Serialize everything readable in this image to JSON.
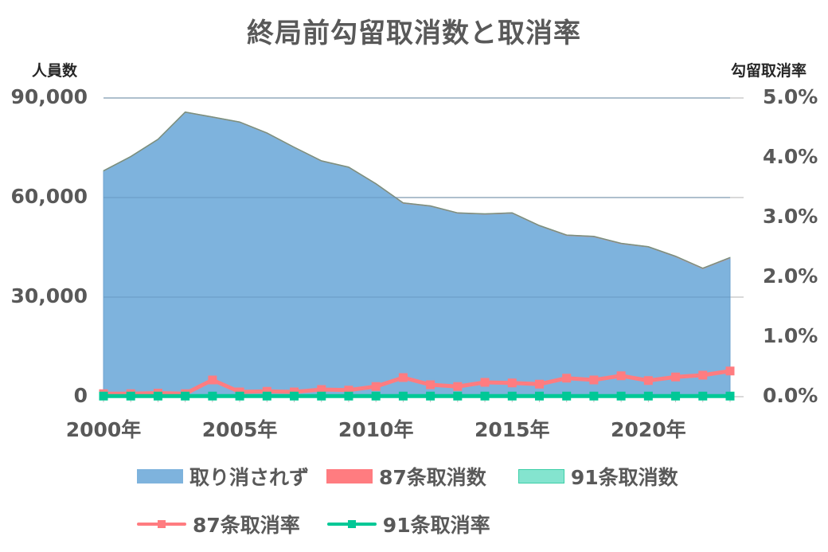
{
  "chart_data": {
    "type": "area+line (dual axis)",
    "title": "終局前勾留取消数と取消率",
    "left_axis_label": "人員数",
    "right_axis_label": "勾留取消率",
    "x": [
      2000,
      2001,
      2002,
      2003,
      2004,
      2005,
      2006,
      2007,
      2008,
      2009,
      2010,
      2011,
      2012,
      2013,
      2014,
      2015,
      2016,
      2017,
      2018,
      2019,
      2020,
      2021,
      2022,
      2023
    ],
    "x_tick_labels": [
      "2000年",
      "2005年",
      "2010年",
      "2015年",
      "2020年"
    ],
    "x_tick_years": [
      2000,
      2005,
      2010,
      2015,
      2020
    ],
    "left_axis": {
      "ylim": [
        0,
        90000
      ],
      "ticks": [
        "0",
        "30,000",
        "60,000",
        "90,000"
      ],
      "tick_values": [
        0,
        30000,
        60000,
        90000
      ]
    },
    "right_axis": {
      "ylim": [
        0.0,
        5.0
      ],
      "ticks": [
        "0.0%",
        "1.0%",
        "2.0%",
        "3.0%",
        "4.0%",
        "5.0%"
      ],
      "tick_values": [
        0,
        1,
        2,
        3,
        4,
        5
      ]
    },
    "series": [
      {
        "name": "取り消されず",
        "type": "stacked-area",
        "axis": "left",
        "color": "#7EB3DD",
        "values": [
          68000,
          72300,
          77500,
          85700,
          84200,
          82700,
          79400,
          75100,
          71000,
          69100,
          64100,
          58300,
          57400,
          55300,
          55000,
          55300,
          51500,
          48600,
          48200,
          46100,
          45100,
          42200,
          38600,
          41800
        ]
      },
      {
        "name": "87条取消数",
        "type": "stacked-area",
        "axis": "left",
        "color": "#FF7C80",
        "values": [
          40,
          40,
          40,
          40,
          60,
          40,
          40,
          40,
          50,
          50,
          60,
          80,
          60,
          60,
          70,
          70,
          60,
          90,
          80,
          90,
          70,
          90,
          90,
          110
        ]
      },
      {
        "name": "91条取消数",
        "type": "stacked-area",
        "axis": "left",
        "color": "#84E4CF",
        "values": [
          10,
          10,
          10,
          10,
          10,
          10,
          10,
          10,
          10,
          10,
          10,
          10,
          10,
          10,
          10,
          10,
          10,
          10,
          10,
          10,
          10,
          10,
          10,
          10
        ]
      },
      {
        "name": "87条取消率",
        "type": "line",
        "axis": "right",
        "color": "#FF7C80",
        "unit": "%",
        "values": [
          0.05,
          0.05,
          0.06,
          0.05,
          0.28,
          0.08,
          0.09,
          0.08,
          0.12,
          0.11,
          0.17,
          0.32,
          0.2,
          0.17,
          0.24,
          0.23,
          0.21,
          0.31,
          0.28,
          0.35,
          0.27,
          0.33,
          0.36,
          0.43
        ]
      },
      {
        "name": "91条取消率",
        "type": "line",
        "axis": "right",
        "color": "#00C896",
        "unit": "%",
        "values": [
          0.01,
          0.01,
          0.01,
          0.01,
          0.01,
          0.01,
          0.01,
          0.01,
          0.01,
          0.01,
          0.01,
          0.01,
          0.01,
          0.01,
          0.01,
          0.01,
          0.01,
          0.01,
          0.01,
          0.01,
          0.01,
          0.01,
          0.01,
          0.01
        ]
      }
    ],
    "grid": true,
    "legend_position": "bottom"
  },
  "legend": {
    "items": [
      {
        "label": "取り消されず",
        "kind": "area",
        "color": "#7EB3DD"
      },
      {
        "label": "87条取消数",
        "kind": "area",
        "color": "#FF7C80"
      },
      {
        "label": "91条取消数",
        "kind": "area",
        "color": "#84E4CF"
      },
      {
        "label": "87条取消率",
        "kind": "line",
        "color": "#FF7C80"
      },
      {
        "label": "91条取消率",
        "kind": "line",
        "color": "#00C896"
      }
    ]
  }
}
